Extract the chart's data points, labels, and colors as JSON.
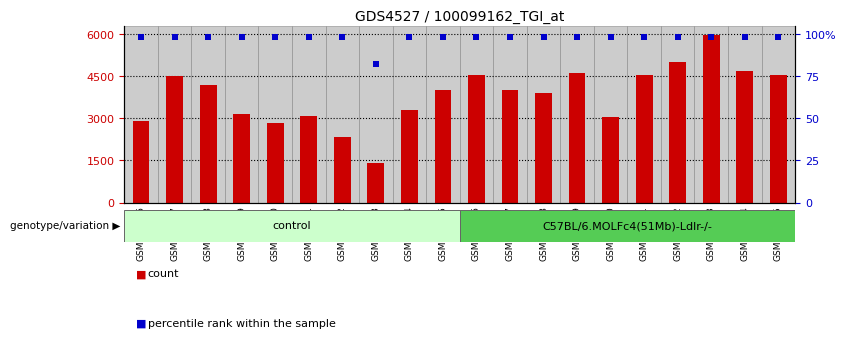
{
  "title": "GDS4527 / 100099162_TGI_at",
  "samples": [
    "GSM592106",
    "GSM592107",
    "GSM592108",
    "GSM592109",
    "GSM592110",
    "GSM592111",
    "GSM592112",
    "GSM592113",
    "GSM592114",
    "GSM592115",
    "GSM592116",
    "GSM592117",
    "GSM592118",
    "GSM592119",
    "GSM592120",
    "GSM592121",
    "GSM592122",
    "GSM592123",
    "GSM592124",
    "GSM592125"
  ],
  "counts": [
    2900,
    4500,
    4200,
    3150,
    2850,
    3100,
    2350,
    1400,
    3300,
    4000,
    4550,
    4000,
    3900,
    4600,
    3050,
    4550,
    5000,
    5950,
    4700,
    4550
  ],
  "percentile_ranks": [
    98,
    98,
    98,
    98,
    98,
    98,
    98,
    82,
    98,
    98,
    98,
    98,
    98,
    98,
    98,
    98,
    98,
    98,
    98,
    98
  ],
  "control_count": 10,
  "treatment_count": 10,
  "control_label": "control",
  "treatment_label": "C57BL/6.MOLFc4(51Mb)-Ldlr-/-",
  "bar_color": "#cc0000",
  "dot_color": "#0000cc",
  "left_yticks": [
    0,
    1500,
    3000,
    4500,
    6000
  ],
  "right_yticks": [
    0,
    25,
    50,
    75,
    100
  ],
  "ylim_left": [
    0,
    6300
  ],
  "ylim_right": [
    0,
    105
  ],
  "tick_label_color_left": "#cc0000",
  "tick_label_color_right": "#0000cc",
  "genotype_label": "genotype/variation",
  "control_bg": "#ccffcc",
  "treatment_bg": "#55cc55",
  "xtick_bg": "#cccccc",
  "bar_width": 0.5
}
